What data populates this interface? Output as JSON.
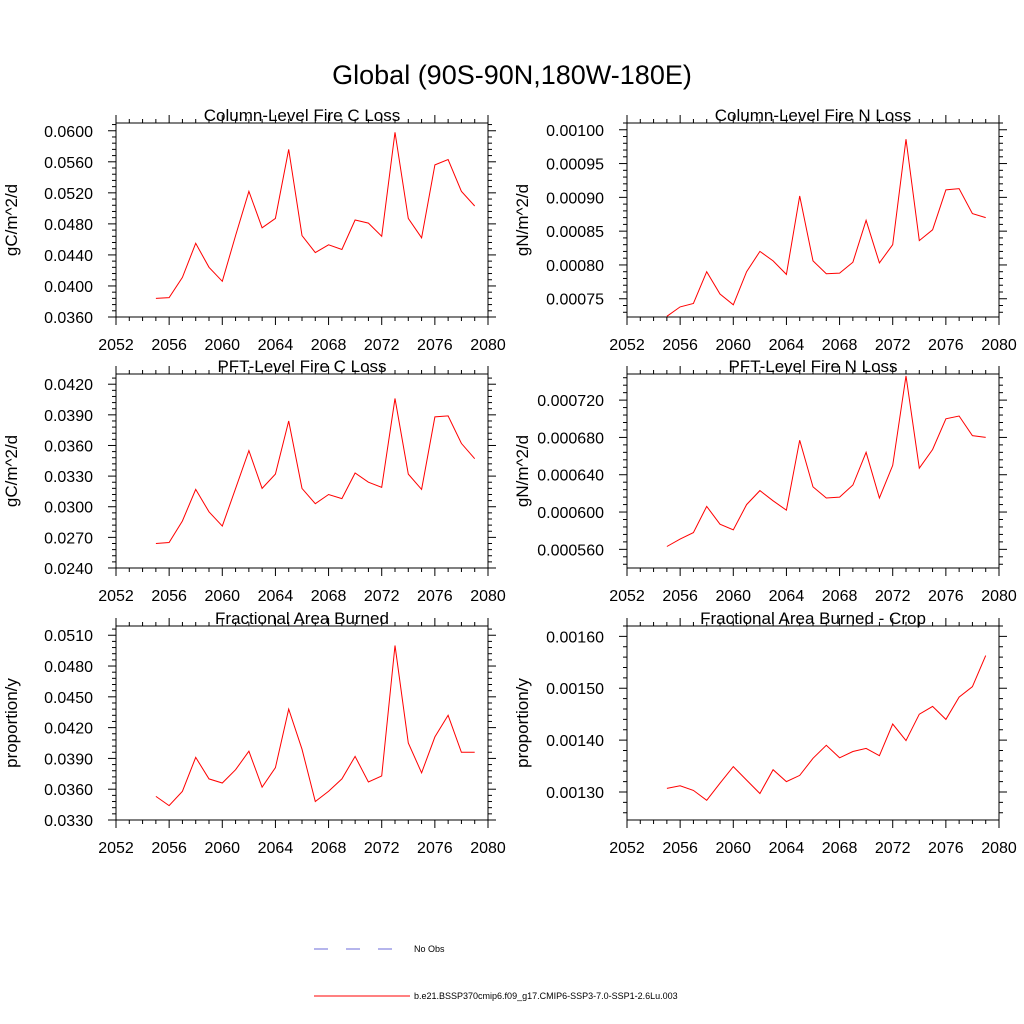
{
  "figure_title": "Global (90S-90N,180W-180E)",
  "legend": {
    "obs_label": "No Obs",
    "model_label": "b.e21.BSSP370cmip6.f09_g17.CMIP6-SSP3-7.0-SSP1-2.6Lu.003",
    "obs_color": "#6b6bd8",
    "model_color": "#ff0000"
  },
  "chart_data": [
    {
      "type": "line",
      "title": "Column-Level Fire C Loss",
      "ylabel": "gC/m^2/d",
      "xlim": [
        2052,
        2080
      ],
      "ylim": [
        0.036,
        0.061
      ],
      "xticks": [
        2052,
        2056,
        2060,
        2064,
        2068,
        2072,
        2076,
        2080
      ],
      "xtick_labels": [
        "2052",
        "2056",
        "2060",
        "2064",
        "2068",
        "2072",
        "2076",
        "2080"
      ],
      "yticks": [
        0.036,
        0.04,
        0.044,
        0.048,
        0.052,
        0.056,
        0.06
      ],
      "ytick_labels": [
        "0.0360",
        "0.0400",
        "0.0440",
        "0.0480",
        "0.0520",
        "0.0560",
        "0.0600"
      ],
      "x": [
        2055,
        2056,
        2057,
        2058,
        2059,
        2060,
        2061,
        2062,
        2063,
        2064,
        2065,
        2066,
        2067,
        2068,
        2069,
        2070,
        2071,
        2072,
        2073,
        2074,
        2075,
        2076,
        2077,
        2078,
        2079
      ],
      "series": [
        {
          "name": "b.e21.BSSP370cmip6.f09_g17.CMIP6-SSP3-7.0-SSP1-2.6Lu.003",
          "color": "#ff0000",
          "values": [
            0.0384,
            0.0385,
            0.0411,
            0.0455,
            0.0424,
            0.0406,
            0.0465,
            0.0522,
            0.0475,
            0.0487,
            0.0576,
            0.0465,
            0.0443,
            0.0453,
            0.0447,
            0.0485,
            0.0481,
            0.0464,
            0.0598,
            0.0487,
            0.0462,
            0.0556,
            0.0563,
            0.0522,
            0.0503
          ]
        }
      ]
    },
    {
      "type": "line",
      "title": "Column-Level Fire N Loss",
      "ylabel": "gN/m^2/d",
      "xlim": [
        2052,
        2080
      ],
      "ylim": [
        0.000723,
        0.00101
      ],
      "xticks": [
        2052,
        2056,
        2060,
        2064,
        2068,
        2072,
        2076,
        2080
      ],
      "xtick_labels": [
        "2052",
        "2056",
        "2060",
        "2064",
        "2068",
        "2072",
        "2076",
        "2080"
      ],
      "yticks": [
        0.00075,
        0.0008,
        0.00085,
        0.0009,
        0.00095,
        0.001
      ],
      "ytick_labels": [
        "0.00075",
        "0.00080",
        "0.00085",
        "0.00090",
        "0.00095",
        "0.00100"
      ],
      "x": [
        2055,
        2056,
        2057,
        2058,
        2059,
        2060,
        2061,
        2062,
        2063,
        2064,
        2065,
        2066,
        2067,
        2068,
        2069,
        2070,
        2071,
        2072,
        2073,
        2074,
        2075,
        2076,
        2077,
        2078,
        2079
      ],
      "series": [
        {
          "name": "b.e21.BSSP370cmip6.f09_g17.CMIP6-SSP3-7.0-SSP1-2.6Lu.003",
          "color": "#ff0000",
          "values": [
            0.000724,
            0.000738,
            0.000743,
            0.00079,
            0.000757,
            0.000741,
            0.00079,
            0.00082,
            0.000806,
            0.000786,
            0.000902,
            0.000806,
            0.000787,
            0.000788,
            0.000804,
            0.000866,
            0.000803,
            0.00083,
            0.000986,
            0.000836,
            0.000852,
            0.000911,
            0.000913,
            0.000876,
            0.00087
          ]
        }
      ]
    },
    {
      "type": "line",
      "title": "PFT-Level Fire C Loss",
      "ylabel": "gC/m^2/d",
      "xlim": [
        2052,
        2080
      ],
      "ylim": [
        0.024,
        0.043
      ],
      "xticks": [
        2052,
        2056,
        2060,
        2064,
        2068,
        2072,
        2076,
        2080
      ],
      "xtick_labels": [
        "2052",
        "2056",
        "2060",
        "2064",
        "2068",
        "2072",
        "2076",
        "2080"
      ],
      "yticks": [
        0.024,
        0.027,
        0.03,
        0.033,
        0.036,
        0.039,
        0.042
      ],
      "ytick_labels": [
        "0.0240",
        "0.0270",
        "0.0300",
        "0.0330",
        "0.0360",
        "0.0390",
        "0.0420"
      ],
      "x": [
        2055,
        2056,
        2057,
        2058,
        2059,
        2060,
        2061,
        2062,
        2063,
        2064,
        2065,
        2066,
        2067,
        2068,
        2069,
        2070,
        2071,
        2072,
        2073,
        2074,
        2075,
        2076,
        2077,
        2078,
        2079
      ],
      "series": [
        {
          "name": "b.e21.BSSP370cmip6.f09_g17.CMIP6-SSP3-7.0-SSP1-2.6Lu.003",
          "color": "#ff0000",
          "values": [
            0.0264,
            0.0265,
            0.0286,
            0.0317,
            0.0295,
            0.0281,
            0.0318,
            0.0355,
            0.0318,
            0.0332,
            0.0384,
            0.0318,
            0.0303,
            0.0312,
            0.0308,
            0.0333,
            0.0324,
            0.0319,
            0.0406,
            0.0332,
            0.0317,
            0.0388,
            0.0389,
            0.0362,
            0.0347
          ]
        }
      ]
    },
    {
      "type": "line",
      "title": "PFT-Level Fire N Loss",
      "ylabel": "gN/m^2/d",
      "xlim": [
        2052,
        2080
      ],
      "ylim": [
        0.00054,
        0.000748
      ],
      "xticks": [
        2052,
        2056,
        2060,
        2064,
        2068,
        2072,
        2076,
        2080
      ],
      "xtick_labels": [
        "2052",
        "2056",
        "2060",
        "2064",
        "2068",
        "2072",
        "2076",
        "2080"
      ],
      "yticks": [
        0.00056,
        0.0006,
        0.00064,
        0.00068,
        0.00072
      ],
      "ytick_labels": [
        "0.000560",
        "0.000600",
        "0.000640",
        "0.000680",
        "0.000720"
      ],
      "x": [
        2055,
        2056,
        2057,
        2058,
        2059,
        2060,
        2061,
        2062,
        2063,
        2064,
        2065,
        2066,
        2067,
        2068,
        2069,
        2070,
        2071,
        2072,
        2073,
        2074,
        2075,
        2076,
        2077,
        2078,
        2079
      ],
      "series": [
        {
          "name": "b.e21.BSSP370cmip6.f09_g17.CMIP6-SSP3-7.0-SSP1-2.6Lu.003",
          "color": "#ff0000",
          "values": [
            0.000563,
            0.000571,
            0.000578,
            0.000606,
            0.000587,
            0.000581,
            0.000608,
            0.000623,
            0.000612,
            0.000602,
            0.000677,
            0.000627,
            0.000615,
            0.000616,
            0.000629,
            0.000664,
            0.000615,
            0.00065,
            0.000746,
            0.000647,
            0.000667,
            0.0007,
            0.000703,
            0.000682,
            0.00068
          ]
        }
      ]
    },
    {
      "type": "line",
      "title": "Fractional Area Burned",
      "ylabel": "proportion/y",
      "xlim": [
        2052,
        2080
      ],
      "ylim": [
        0.033,
        0.0519
      ],
      "xticks": [
        2052,
        2056,
        2060,
        2064,
        2068,
        2072,
        2076,
        2080
      ],
      "xtick_labels": [
        "2052",
        "2056",
        "2060",
        "2064",
        "2068",
        "2072",
        "2076",
        "2080"
      ],
      "yticks": [
        0.033,
        0.036,
        0.039,
        0.042,
        0.045,
        0.048,
        0.051
      ],
      "ytick_labels": [
        "0.0330",
        "0.0360",
        "0.0390",
        "0.0420",
        "0.0450",
        "0.0480",
        "0.0510"
      ],
      "x": [
        2055,
        2056,
        2057,
        2058,
        2059,
        2060,
        2061,
        2062,
        2063,
        2064,
        2065,
        2066,
        2067,
        2068,
        2069,
        2070,
        2071,
        2072,
        2073,
        2074,
        2075,
        2076,
        2077,
        2078,
        2079
      ],
      "series": [
        {
          "name": "b.e21.BSSP370cmip6.f09_g17.CMIP6-SSP3-7.0-SSP1-2.6Lu.003",
          "color": "#ff0000",
          "values": [
            0.0353,
            0.0344,
            0.0358,
            0.0391,
            0.037,
            0.0366,
            0.0379,
            0.0397,
            0.0362,
            0.0381,
            0.0438,
            0.0399,
            0.0348,
            0.0358,
            0.037,
            0.0392,
            0.0367,
            0.0373,
            0.05,
            0.0405,
            0.0376,
            0.0411,
            0.0432,
            0.0396,
            0.0396
          ]
        }
      ]
    },
    {
      "type": "line",
      "title": "Fractional Area Burned - Crop",
      "ylabel": "proportion/y",
      "xlim": [
        2052,
        2080
      ],
      "ylim": [
        0.001246,
        0.00162
      ],
      "xticks": [
        2052,
        2056,
        2060,
        2064,
        2068,
        2072,
        2076,
        2080
      ],
      "xtick_labels": [
        "2052",
        "2056",
        "2060",
        "2064",
        "2068",
        "2072",
        "2076",
        "2080"
      ],
      "yticks": [
        0.0013,
        0.0014,
        0.0015,
        0.0016
      ],
      "ytick_labels": [
        "0.00130",
        "0.00140",
        "0.00150",
        "0.00160"
      ],
      "x": [
        2055,
        2056,
        2057,
        2058,
        2059,
        2060,
        2061,
        2062,
        2063,
        2064,
        2065,
        2066,
        2067,
        2068,
        2069,
        2070,
        2071,
        2072,
        2073,
        2074,
        2075,
        2076,
        2077,
        2078,
        2079
      ],
      "series": [
        {
          "name": "b.e21.BSSP370cmip6.f09_g17.CMIP6-SSP3-7.0-SSP1-2.6Lu.003",
          "color": "#ff0000",
          "values": [
            0.001307,
            0.001312,
            0.001303,
            0.001284,
            0.001317,
            0.001349,
            0.001323,
            0.001297,
            0.001343,
            0.00132,
            0.001332,
            0.001365,
            0.00139,
            0.001366,
            0.001378,
            0.001384,
            0.00137,
            0.001431,
            0.001399,
            0.00145,
            0.001465,
            0.00144,
            0.001483,
            0.001503,
            0.001563
          ]
        }
      ]
    }
  ]
}
